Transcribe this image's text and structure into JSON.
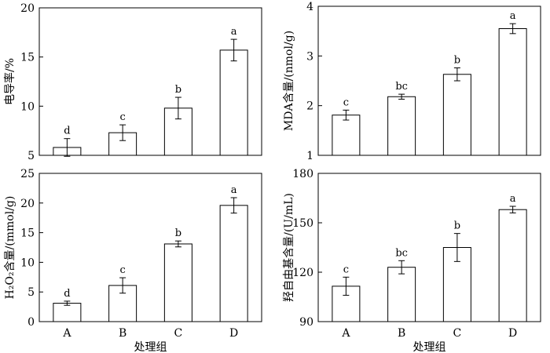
{
  "chart_data": [
    {
      "type": "bar",
      "title": "",
      "xlabel": "",
      "ylabel": "电导率/%",
      "categories": [
        "A",
        "B",
        "C",
        "D"
      ],
      "values": [
        5.8,
        7.3,
        9.8,
        15.7
      ],
      "errors": [
        0.9,
        0.8,
        1.1,
        1.1
      ],
      "letters": [
        "d",
        "c",
        "b",
        "a"
      ],
      "ylim": [
        5,
        20
      ],
      "yticks": [
        5,
        10,
        15,
        20
      ],
      "show_xticklabels": false
    },
    {
      "type": "bar",
      "title": "",
      "xlabel": "",
      "ylabel": "MDA含量/(nmol/g)",
      "categories": [
        "A",
        "B",
        "C",
        "D"
      ],
      "values": [
        1.81,
        2.18,
        2.63,
        3.55
      ],
      "errors": [
        0.1,
        0.05,
        0.13,
        0.1
      ],
      "letters": [
        "c",
        "bc",
        "b",
        "a"
      ],
      "ylim": [
        1,
        4
      ],
      "yticks": [
        1,
        2,
        3,
        4
      ],
      "show_xticklabels": false
    },
    {
      "type": "bar",
      "title": "",
      "xlabel": "处理组",
      "ylabel": "H₂O₂含量/(mmol/g)",
      "categories": [
        "A",
        "B",
        "C",
        "D"
      ],
      "values": [
        3.1,
        6.1,
        13.1,
        19.6
      ],
      "errors": [
        0.35,
        1.3,
        0.5,
        1.3
      ],
      "letters": [
        "d",
        "c",
        "b",
        "a"
      ],
      "ylim": [
        0,
        25
      ],
      "yticks": [
        0,
        5,
        10,
        15,
        20,
        25
      ],
      "show_xticklabels": true
    },
    {
      "type": "bar",
      "title": "",
      "xlabel": "处理组",
      "ylabel": "羟自由基含量/(U/mL)",
      "categories": [
        "A",
        "B",
        "C",
        "D"
      ],
      "values": [
        111.5,
        123,
        135,
        158
      ],
      "errors": [
        5.5,
        4,
        8.5,
        2
      ],
      "letters": [
        "c",
        "bc",
        "b",
        "a"
      ],
      "ylim": [
        90,
        180
      ],
      "yticks": [
        90,
        120,
        150,
        180
      ],
      "show_xticklabels": true
    }
  ]
}
